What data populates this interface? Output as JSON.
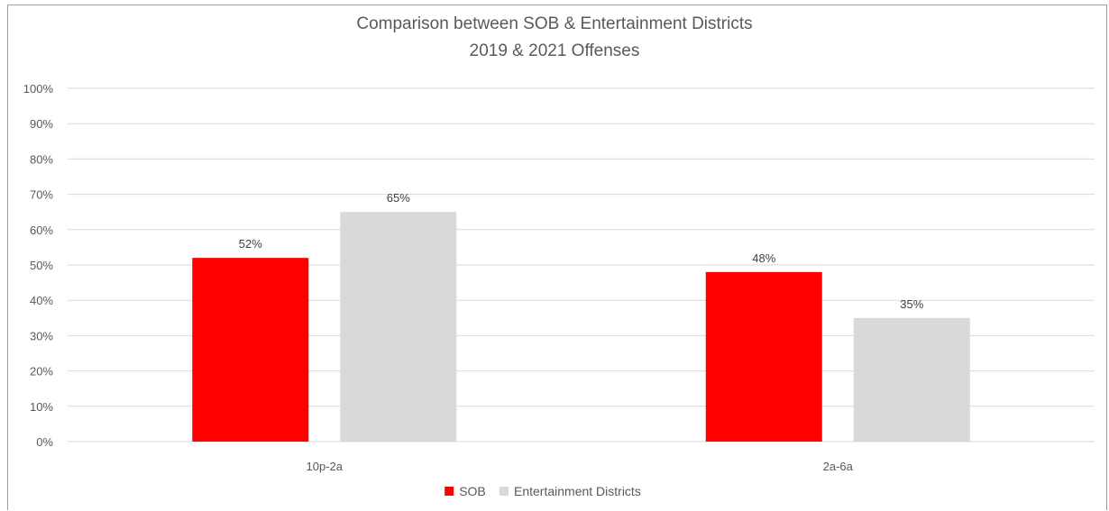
{
  "chart_data": {
    "type": "bar",
    "title": "Comparison between SOB & Entertainment Districts",
    "subtitle": "2019 & 2021 Offenses",
    "categories": [
      "10p-2a",
      "2a-6a"
    ],
    "series": [
      {
        "name": "SOB",
        "color": "#ff0000",
        "values": [
          52,
          48
        ],
        "labels": [
          "52%",
          "48%"
        ]
      },
      {
        "name": "Entertainment Districts",
        "color": "#d9d9d9",
        "values": [
          65,
          35
        ],
        "labels": [
          "65%",
          "35%"
        ]
      }
    ],
    "ylim": [
      0,
      100
    ],
    "yticks": [
      "0%",
      "10%",
      "20%",
      "30%",
      "40%",
      "50%",
      "60%",
      "70%",
      "80%",
      "90%",
      "100%"
    ],
    "grid": true,
    "legend": "bottom-center"
  }
}
